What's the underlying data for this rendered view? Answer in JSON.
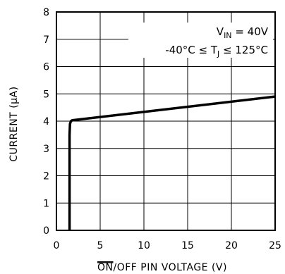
{
  "chart_data": {
    "type": "line",
    "xlabel_overline": "ON",
    "xlabel_rest": "/OFF PIN VOLTAGE (V)",
    "ylabel": "CURRENT (μA)",
    "xlim": [
      0,
      25
    ],
    "ylim": [
      0,
      8
    ],
    "x_ticks": [
      0,
      5,
      10,
      15,
      20,
      25
    ],
    "y_ticks": [
      0,
      1,
      2,
      3,
      4,
      5,
      6,
      7,
      8
    ],
    "grid": true,
    "series": [
      {
        "x": [
          1.5,
          1.5,
          1.55,
          1.65,
          1.8,
          25
        ],
        "y": [
          0,
          3.5,
          3.9,
          4.0,
          4.03,
          4.9
        ]
      }
    ],
    "annotations": {
      "vin_prefix": "V",
      "vin_sub": "IN",
      "vin_value": " = 40V",
      "temp_prefix": "-40°C ≤ T",
      "temp_sub": "J",
      "temp_suffix": " ≤ 125°C"
    }
  }
}
